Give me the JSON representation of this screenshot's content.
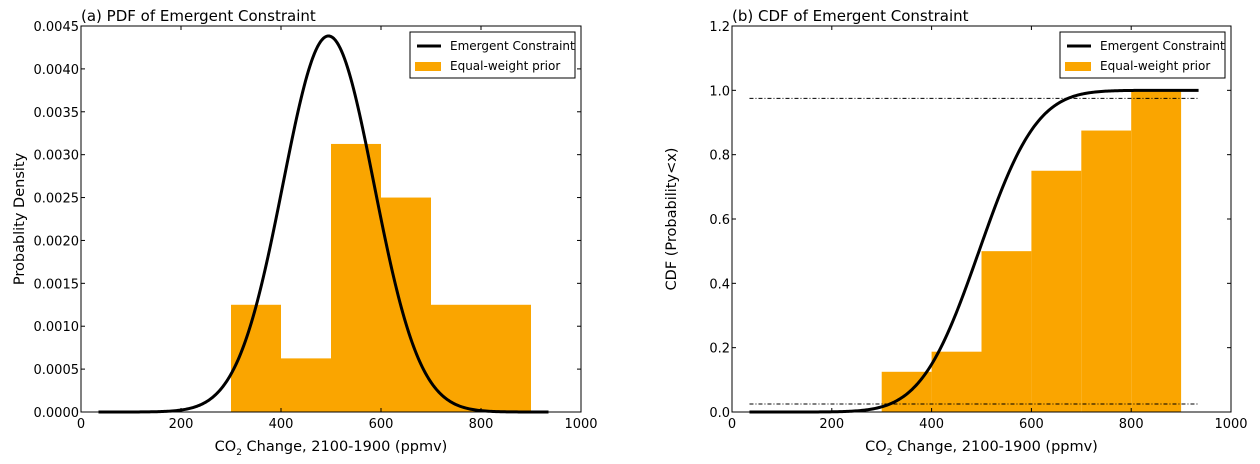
{
  "chart_data": [
    {
      "panel": "a",
      "type": "bar",
      "title": "(a) PDF of Emergent Constraint",
      "xlabel": "CO2 Change, 2100-1900 (ppmv)",
      "xlabel_parts": {
        "pre": "CO",
        "sub": "2",
        "post": " Change, 2100-1900 (ppmv)"
      },
      "ylabel": "Probablity Density",
      "xlim": [
        0,
        1000
      ],
      "ylim": [
        0,
        0.0045
      ],
      "xticks": [
        0,
        200,
        400,
        600,
        800,
        1000
      ],
      "xtick_labels": [
        "0",
        "200",
        "400",
        "600",
        "800",
        "1000"
      ],
      "yticks": [
        0,
        0.0005,
        0.001,
        0.0015,
        0.002,
        0.0025,
        0.003,
        0.0035,
        0.004,
        0.0045
      ],
      "ytick_labels": [
        "0.0000",
        "0.0005",
        "0.0010",
        "0.0015",
        "0.0020",
        "0.0025",
        "0.0030",
        "0.0035",
        "0.0040",
        "0.0045"
      ],
      "legend": {
        "position": "top-right",
        "entries": [
          {
            "label": "Emergent Constraint",
            "kind": "line",
            "color": "#000000"
          },
          {
            "label": "Equal-weight prior",
            "kind": "patch",
            "color": "#FAA500"
          }
        ]
      },
      "histogram": {
        "name": "Equal-weight prior",
        "color": "#FAA500",
        "bins": [
          {
            "x0": 300,
            "x1": 400,
            "value": 0.00125
          },
          {
            "x0": 400,
            "x1": 500,
            "value": 0.000625
          },
          {
            "x0": 500,
            "x1": 600,
            "value": 0.003125
          },
          {
            "x0": 600,
            "x1": 700,
            "value": 0.0025
          },
          {
            "x0": 700,
            "x1": 900,
            "value": 0.00125
          }
        ]
      },
      "curve": {
        "name": "Emergent Constraint",
        "kind": "gaussian_pdf",
        "mean": 495,
        "std": 91,
        "x_range": [
          35,
          935
        ],
        "color": "#000000"
      }
    },
    {
      "panel": "b",
      "type": "bar",
      "title": "(b) CDF of Emergent Constraint",
      "xlabel": "CO2 Change, 2100-1900 (ppmv)",
      "xlabel_parts": {
        "pre": "CO",
        "sub": "2",
        "post": " Change, 2100-1900 (ppmv)"
      },
      "ylabel": "CDF (Probability<x)",
      "xlim": [
        0,
        1000
      ],
      "ylim": [
        0,
        1.2
      ],
      "xticks": [
        0,
        200,
        400,
        600,
        800,
        1000
      ],
      "xtick_labels": [
        "0",
        "200",
        "400",
        "600",
        "800",
        "1000"
      ],
      "yticks": [
        0,
        0.2,
        0.4,
        0.6,
        0.8,
        1.0,
        1.2
      ],
      "ytick_labels": [
        "0.0",
        "0.2",
        "0.4",
        "0.6",
        "0.8",
        "1.0",
        "1.2"
      ],
      "legend": {
        "position": "top-right",
        "entries": [
          {
            "label": "Emergent Constraint",
            "kind": "line",
            "color": "#000000"
          },
          {
            "label": "Equal-weight prior",
            "kind": "patch",
            "color": "#FAA500"
          }
        ]
      },
      "histogram": {
        "name": "Equal-weight prior",
        "color": "#FAA500",
        "bins": [
          {
            "x0": 300,
            "x1": 400,
            "value": 0.125
          },
          {
            "x0": 400,
            "x1": 500,
            "value": 0.1875
          },
          {
            "x0": 500,
            "x1": 600,
            "value": 0.5
          },
          {
            "x0": 600,
            "x1": 700,
            "value": 0.75
          },
          {
            "x0": 700,
            "x1": 800,
            "value": 0.875
          },
          {
            "x0": 800,
            "x1": 900,
            "value": 1.0
          }
        ]
      },
      "curve": {
        "name": "Emergent Constraint",
        "kind": "gaussian_cdf",
        "mean": 495,
        "std": 91,
        "x_range": [
          35,
          935
        ],
        "color": "#000000"
      },
      "reference_lines": [
        {
          "y": 0.025,
          "x_range": [
            35,
            935
          ],
          "style": "dash-dot"
        },
        {
          "y": 0.975,
          "x_range": [
            35,
            935
          ],
          "style": "dash-dot"
        }
      ]
    }
  ]
}
